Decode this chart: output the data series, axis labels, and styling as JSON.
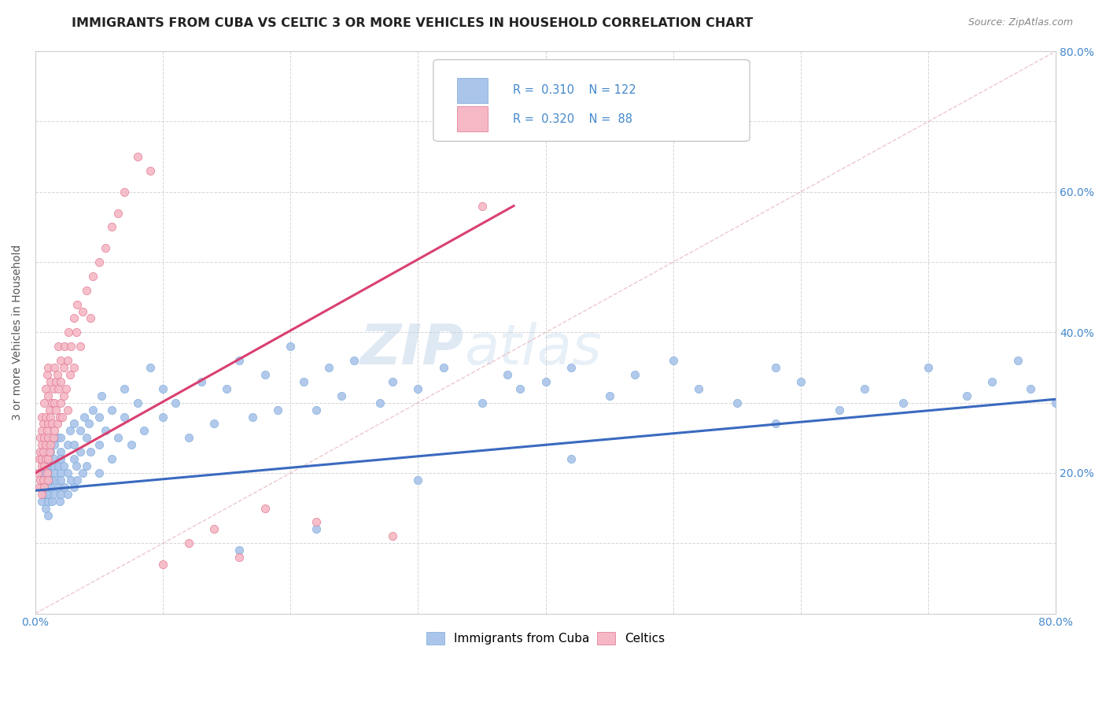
{
  "title": "IMMIGRANTS FROM CUBA VS CELTIC 3 OR MORE VEHICLES IN HOUSEHOLD CORRELATION CHART",
  "source_text": "Source: ZipAtlas.com",
  "ylabel": "3 or more Vehicles in Household",
  "watermark": "ZIPAtlas",
  "xlim": [
    0.0,
    0.8
  ],
  "ylim": [
    0.0,
    0.8
  ],
  "xticks": [
    0.0,
    0.1,
    0.2,
    0.3,
    0.4,
    0.5,
    0.6,
    0.7,
    0.8
  ],
  "yticks": [
    0.0,
    0.1,
    0.2,
    0.3,
    0.4,
    0.5,
    0.6,
    0.7,
    0.8
  ],
  "series": [
    {
      "name": "Immigrants from Cuba",
      "color": "#aac4ea",
      "edge_color": "#7aaad8",
      "R": 0.31,
      "N": 122,
      "trend_color": "#3a6abf",
      "marker_size": 55
    },
    {
      "name": "Celtics",
      "color": "#f5b8c4",
      "edge_color": "#e07090",
      "R": 0.32,
      "N": 88,
      "trend_color": "#d94070",
      "marker_size": 55
    }
  ],
  "legend_R_color": "#4488cc",
  "grid_color": "#cccccc",
  "background_color": "#ffffff",
  "title_color": "#222222",
  "title_fontsize": 11.5,
  "axis_label_fontsize": 10,
  "tick_fontsize": 10,
  "blue_trend": [
    0.0,
    0.8,
    0.175,
    0.305
  ],
  "pink_trend": [
    0.0,
    0.375,
    0.2,
    0.58
  ],
  "diag_line": [
    0.0,
    0.8,
    0.0,
    0.8
  ],
  "blue_x": [
    0.005,
    0.005,
    0.005,
    0.007,
    0.007,
    0.008,
    0.008,
    0.009,
    0.009,
    0.01,
    0.01,
    0.01,
    0.01,
    0.01,
    0.01,
    0.01,
    0.01,
    0.01,
    0.012,
    0.012,
    0.013,
    0.013,
    0.014,
    0.015,
    0.015,
    0.015,
    0.015,
    0.016,
    0.017,
    0.018,
    0.018,
    0.019,
    0.02,
    0.02,
    0.02,
    0.02,
    0.02,
    0.02,
    0.022,
    0.023,
    0.025,
    0.025,
    0.025,
    0.027,
    0.028,
    0.03,
    0.03,
    0.03,
    0.03,
    0.032,
    0.033,
    0.035,
    0.035,
    0.037,
    0.038,
    0.04,
    0.04,
    0.042,
    0.043,
    0.045,
    0.05,
    0.05,
    0.05,
    0.052,
    0.055,
    0.06,
    0.06,
    0.065,
    0.07,
    0.07,
    0.075,
    0.08,
    0.085,
    0.09,
    0.1,
    0.1,
    0.11,
    0.12,
    0.13,
    0.14,
    0.15,
    0.16,
    0.17,
    0.18,
    0.19,
    0.2,
    0.21,
    0.22,
    0.23,
    0.24,
    0.25,
    0.27,
    0.28,
    0.3,
    0.32,
    0.35,
    0.37,
    0.38,
    0.4,
    0.42,
    0.45,
    0.47,
    0.5,
    0.52,
    0.55,
    0.58,
    0.6,
    0.63,
    0.65,
    0.68,
    0.7,
    0.73,
    0.75,
    0.77,
    0.78,
    0.8,
    0.83,
    0.58,
    0.42,
    0.3,
    0.22,
    0.16
  ],
  "blue_y": [
    0.18,
    0.2,
    0.16,
    0.22,
    0.17,
    0.19,
    0.15,
    0.21,
    0.17,
    0.22,
    0.19,
    0.25,
    0.16,
    0.18,
    0.21,
    0.14,
    0.17,
    0.2,
    0.23,
    0.18,
    0.19,
    0.16,
    0.21,
    0.24,
    0.2,
    0.17,
    0.22,
    0.19,
    0.25,
    0.18,
    0.21,
    0.16,
    0.2,
    0.23,
    0.17,
    0.25,
    0.19,
    0.22,
    0.21,
    0.18,
    0.24,
    0.2,
    0.17,
    0.26,
    0.19,
    0.22,
    0.27,
    0.18,
    0.24,
    0.21,
    0.19,
    0.26,
    0.23,
    0.2,
    0.28,
    0.25,
    0.21,
    0.27,
    0.23,
    0.29,
    0.24,
    0.28,
    0.2,
    0.31,
    0.26,
    0.22,
    0.29,
    0.25,
    0.28,
    0.32,
    0.24,
    0.3,
    0.26,
    0.35,
    0.28,
    0.32,
    0.3,
    0.25,
    0.33,
    0.27,
    0.32,
    0.36,
    0.28,
    0.34,
    0.29,
    0.38,
    0.33,
    0.29,
    0.35,
    0.31,
    0.36,
    0.3,
    0.33,
    0.32,
    0.35,
    0.3,
    0.34,
    0.32,
    0.33,
    0.35,
    0.31,
    0.34,
    0.36,
    0.32,
    0.3,
    0.35,
    0.33,
    0.29,
    0.32,
    0.3,
    0.35,
    0.31,
    0.33,
    0.36,
    0.32,
    0.3,
    0.28,
    0.27,
    0.22,
    0.19,
    0.12,
    0.09
  ],
  "pink_x": [
    0.002,
    0.003,
    0.003,
    0.004,
    0.004,
    0.004,
    0.005,
    0.005,
    0.005,
    0.005,
    0.005,
    0.005,
    0.006,
    0.006,
    0.006,
    0.007,
    0.007,
    0.007,
    0.007,
    0.008,
    0.008,
    0.008,
    0.008,
    0.009,
    0.009,
    0.009,
    0.01,
    0.01,
    0.01,
    0.01,
    0.01,
    0.01,
    0.011,
    0.011,
    0.012,
    0.012,
    0.012,
    0.013,
    0.013,
    0.014,
    0.014,
    0.015,
    0.015,
    0.015,
    0.016,
    0.016,
    0.017,
    0.017,
    0.018,
    0.018,
    0.019,
    0.02,
    0.02,
    0.02,
    0.021,
    0.022,
    0.022,
    0.023,
    0.024,
    0.025,
    0.025,
    0.026,
    0.027,
    0.028,
    0.03,
    0.03,
    0.032,
    0.033,
    0.035,
    0.037,
    0.04,
    0.043,
    0.045,
    0.05,
    0.055,
    0.06,
    0.065,
    0.07,
    0.08,
    0.09,
    0.1,
    0.12,
    0.14,
    0.16,
    0.18,
    0.22,
    0.28,
    0.35
  ],
  "pink_y": [
    0.2,
    0.22,
    0.18,
    0.23,
    0.19,
    0.25,
    0.21,
    0.17,
    0.28,
    0.24,
    0.22,
    0.26,
    0.19,
    0.23,
    0.27,
    0.21,
    0.25,
    0.3,
    0.18,
    0.24,
    0.28,
    0.22,
    0.32,
    0.26,
    0.2,
    0.34,
    0.22,
    0.27,
    0.31,
    0.25,
    0.19,
    0.35,
    0.29,
    0.23,
    0.28,
    0.33,
    0.24,
    0.3,
    0.27,
    0.32,
    0.25,
    0.3,
    0.35,
    0.26,
    0.33,
    0.29,
    0.34,
    0.27,
    0.32,
    0.38,
    0.28,
    0.33,
    0.3,
    0.36,
    0.28,
    0.35,
    0.31,
    0.38,
    0.32,
    0.36,
    0.29,
    0.4,
    0.34,
    0.38,
    0.42,
    0.35,
    0.4,
    0.44,
    0.38,
    0.43,
    0.46,
    0.42,
    0.48,
    0.5,
    0.52,
    0.55,
    0.57,
    0.6,
    0.65,
    0.63,
    0.07,
    0.1,
    0.12,
    0.08,
    0.15,
    0.13,
    0.11,
    0.58
  ]
}
